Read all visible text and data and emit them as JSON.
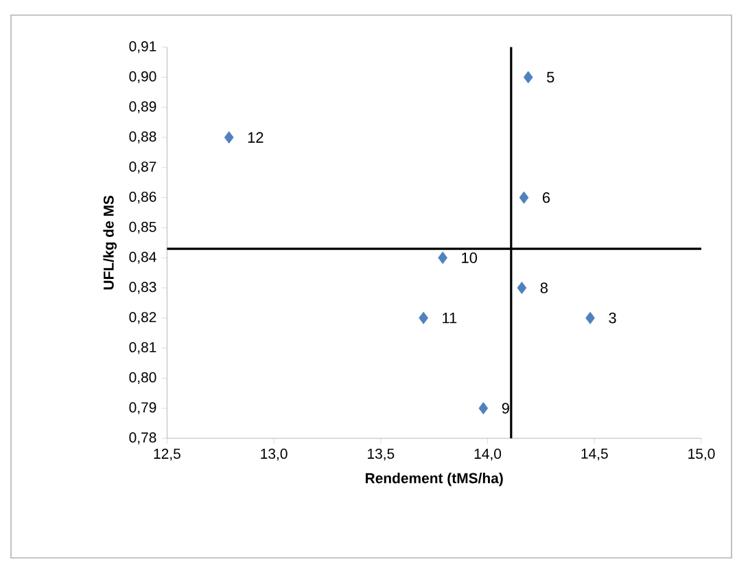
{
  "chart_data": {
    "type": "scatter",
    "xlabel": "Rendement (tMS/ha)",
    "ylabel": "UFL/kg de MS",
    "marker": "diamond",
    "series": [
      {
        "color": "#4f81bd",
        "x": [
          14.48,
          14.19,
          14.17,
          14.16,
          13.98,
          13.79,
          13.7,
          12.79
        ],
        "values": [
          0.82,
          0.9,
          0.86,
          0.83,
          0.79,
          0.84,
          0.82,
          0.88
        ]
      }
    ],
    "xlim": [
      12.5,
      15.0
    ],
    "ylim": [
      0.78,
      0.91
    ],
    "xticks": [
      {
        "value": 12.5,
        "label": "12,5"
      },
      {
        "value": 13.0,
        "label": "13,0"
      },
      {
        "value": 13.5,
        "label": "13,5"
      },
      {
        "value": 14.0,
        "label": "14,0"
      },
      {
        "value": 14.5,
        "label": "14,5"
      },
      {
        "value": 15.0,
        "label": "15,0"
      }
    ],
    "yticks": [
      {
        "value": 0.78,
        "label": "0,78"
      },
      {
        "value": 0.79,
        "label": "0,79"
      },
      {
        "value": 0.8,
        "label": "0,80"
      },
      {
        "value": 0.81,
        "label": "0,81"
      },
      {
        "value": 0.82,
        "label": "0,82"
      },
      {
        "value": 0.83,
        "label": "0,83"
      },
      {
        "value": 0.84,
        "label": "0,84"
      },
      {
        "value": 0.85,
        "label": "0,85"
      },
      {
        "value": 0.86,
        "label": "0,86"
      },
      {
        "value": 0.87,
        "label": "0,87"
      },
      {
        "value": 0.88,
        "label": "0,88"
      },
      {
        "value": 0.89,
        "label": "0,89"
      },
      {
        "value": 0.9,
        "label": "0,90"
      },
      {
        "value": 0.91,
        "label": "0,91"
      }
    ],
    "ref_lines": [
      {
        "axis": "x",
        "value": 14.11,
        "color": "#000000"
      },
      {
        "axis": "y",
        "value": 0.843,
        "color": "#000000"
      }
    ],
    "annotations": [
      {
        "text": "3",
        "x": 14.48,
        "y": 0.82
      },
      {
        "text": "5",
        "x": 14.19,
        "y": 0.9
      },
      {
        "text": "6",
        "x": 14.17,
        "y": 0.86
      },
      {
        "text": "8",
        "x": 14.16,
        "y": 0.83
      },
      {
        "text": "9",
        "x": 13.98,
        "y": 0.79
      },
      {
        "text": "10",
        "x": 13.79,
        "y": 0.84
      },
      {
        "text": "11",
        "x": 13.7,
        "y": 0.82
      },
      {
        "text": "12",
        "x": 12.79,
        "y": 0.88
      }
    ]
  }
}
